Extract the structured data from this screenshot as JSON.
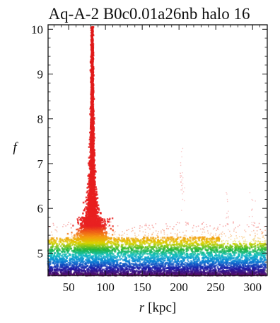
{
  "chart_data": {
    "type": "scatter",
    "title": "Aq-A-2 B0c0.01a26nb halo 16",
    "xlabel": {
      "symbol": "r",
      "unit": "[kpc]"
    },
    "ylabel": "f",
    "xlim": [
      22,
      320
    ],
    "ylim": [
      4.5,
      10.1
    ],
    "x_ticks": [
      50,
      100,
      150,
      200,
      250,
      300
    ],
    "y_ticks": [
      5,
      6,
      7,
      8,
      9,
      10
    ],
    "grid": false,
    "color_encoding": "rainbow by f (purple low, red high)",
    "colors": [
      "#5a0a5e",
      "#1c1ca8",
      "#0a82d8",
      "#12c0c0",
      "#22b43a",
      "#d8d400",
      "#f59a10",
      "#e82020"
    ],
    "features": {
      "spike": {
        "x_center": 82,
        "f_min": 5.3,
        "f_max": 10.05
      },
      "band": {
        "x_range": [
          22,
          318
        ],
        "f_range": [
          4.5,
          5.4
        ]
      },
      "stray_points": [
        {
          "x": 203,
          "f": 6.9
        },
        {
          "x": 205,
          "f": 6.4
        },
        {
          "x": 265,
          "f": 5.9
        },
        {
          "x": 300,
          "f": 5.9
        }
      ]
    }
  }
}
